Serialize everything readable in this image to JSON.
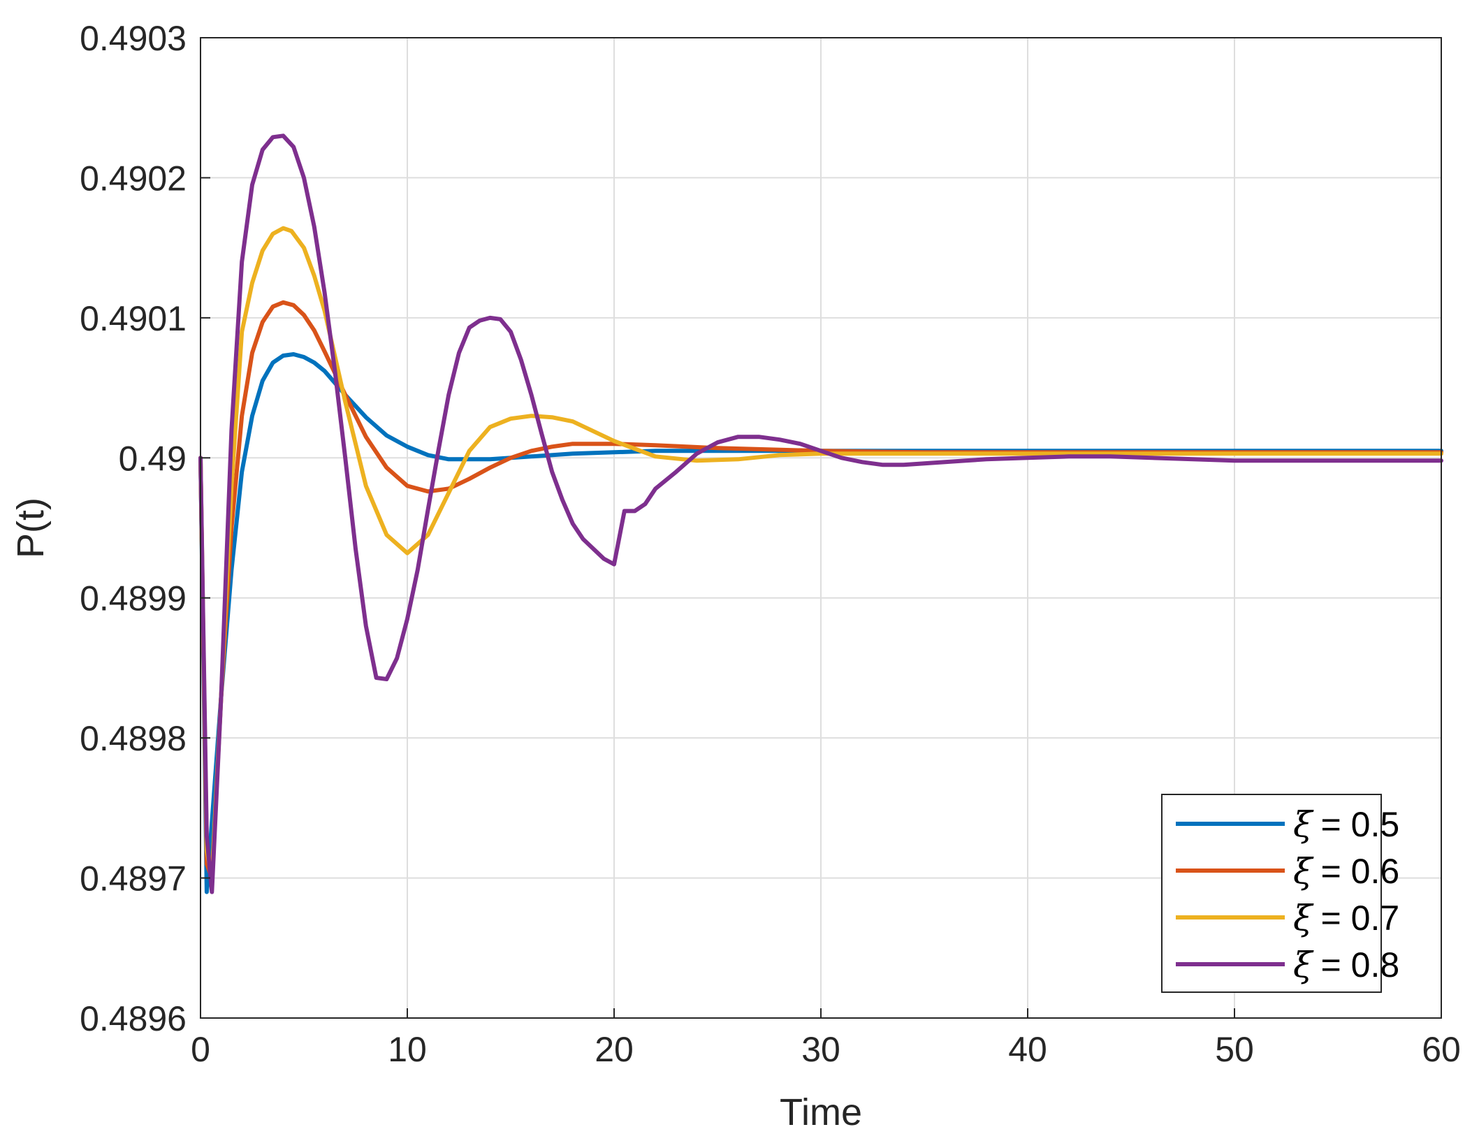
{
  "chart_data": {
    "type": "line",
    "title": "",
    "xlabel": "Time",
    "ylabel": "P(t)",
    "xlim": [
      0,
      60
    ],
    "ylim": [
      0.4896,
      0.4903
    ],
    "xticks": [
      0,
      10,
      20,
      30,
      40,
      50,
      60
    ],
    "xtick_labels": [
      "0",
      "10",
      "20",
      "30",
      "40",
      "50",
      "60"
    ],
    "yticks": [
      0.4896,
      0.4897,
      0.4898,
      0.4899,
      0.49,
      0.4901,
      0.4902,
      0.4903
    ],
    "ytick_labels": [
      "0.4896",
      "0.4897",
      "0.4898",
      "0.4899",
      "0.49",
      "0.4901",
      "0.4902",
      "0.4903"
    ],
    "grid": true,
    "legend_position": "bottom-right",
    "series": [
      {
        "name": "ξ = 0.5",
        "legend_symbol": "ξ",
        "legend_value": "= 0.5",
        "color": "#0072BD",
        "x": [
          0,
          0.3,
          0.6,
          1,
          1.5,
          2,
          2.5,
          3,
          3.5,
          4,
          4.5,
          5,
          5.5,
          6,
          7,
          8,
          9,
          10,
          11,
          12,
          13,
          14,
          15,
          16,
          18,
          20,
          22,
          25,
          30,
          35,
          40,
          45,
          50,
          55,
          60
        ],
        "y": [
          0.49,
          0.48969,
          0.48975,
          0.48983,
          0.48992,
          0.48999,
          0.49003,
          0.490055,
          0.490068,
          0.490073,
          0.490074,
          0.490072,
          0.490068,
          0.490062,
          0.490045,
          0.490029,
          0.490016,
          0.490008,
          0.490002,
          0.489999,
          0.489999,
          0.489999,
          0.49,
          0.490001,
          0.490003,
          0.490004,
          0.490005,
          0.490005,
          0.490005,
          0.490005,
          0.490005,
          0.490005,
          0.490005,
          0.490005,
          0.490005
        ]
      },
      {
        "name": "ξ = 0.6",
        "legend_symbol": "ξ",
        "legend_value": "= 0.6",
        "color": "#D95319",
        "x": [
          0,
          0.3,
          0.55,
          1,
          1.5,
          2,
          2.5,
          3,
          3.5,
          4,
          4.5,
          5,
          5.5,
          6,
          7,
          8,
          9,
          10,
          11,
          12,
          13,
          14,
          15,
          16,
          17,
          18,
          20,
          22,
          25,
          30,
          35,
          40,
          45,
          50,
          55,
          60
        ],
        "y": [
          0.49,
          0.48971,
          0.4897,
          0.48983,
          0.48995,
          0.49003,
          0.490075,
          0.490097,
          0.490108,
          0.490111,
          0.490109,
          0.490102,
          0.490091,
          0.490076,
          0.490045,
          0.490015,
          0.489993,
          0.48998,
          0.489976,
          0.489978,
          0.489985,
          0.489993,
          0.49,
          0.490005,
          0.490008,
          0.49001,
          0.49001,
          0.490009,
          0.490007,
          0.490005,
          0.490004,
          0.490004,
          0.490004,
          0.490004,
          0.490004,
          0.490004
        ]
      },
      {
        "name": "ξ = 0.7",
        "legend_symbol": "ξ",
        "legend_value": "= 0.7",
        "color": "#EDB120",
        "x": [
          0,
          0.3,
          0.55,
          1,
          1.5,
          2,
          2.5,
          3,
          3.5,
          4,
          4.4,
          5,
          5.5,
          6,
          7,
          8,
          9,
          10,
          11,
          12,
          13,
          14,
          15,
          16,
          17,
          18,
          19,
          20,
          22,
          24,
          26,
          28,
          30,
          35,
          40,
          45,
          50,
          55,
          60
        ],
        "y": [
          0.49,
          0.48972,
          0.4897,
          0.48983,
          0.48998,
          0.49009,
          0.490125,
          0.490148,
          0.49016,
          0.490164,
          0.490162,
          0.49015,
          0.49013,
          0.490105,
          0.49004,
          0.48998,
          0.489945,
          0.489932,
          0.489945,
          0.489975,
          0.490005,
          0.490022,
          0.490028,
          0.49003,
          0.490029,
          0.490026,
          0.490019,
          0.490012,
          0.490001,
          0.489998,
          0.489999,
          0.490002,
          0.490003,
          0.490003,
          0.490003,
          0.490003,
          0.490003,
          0.490003,
          0.490003
        ]
      },
      {
        "name": "ξ = 0.8",
        "legend_symbol": "ξ",
        "legend_value": "= 0.8",
        "color": "#7E2F8E",
        "x": [
          0,
          0.3,
          0.55,
          1,
          1.5,
          2,
          2.5,
          3,
          3.5,
          4,
          4.5,
          5,
          5.5,
          6,
          6.5,
          7,
          7.5,
          8,
          8.5,
          9,
          9.5,
          10,
          10.5,
          11,
          11.5,
          12,
          12.5,
          13,
          13.5,
          14,
          14.5,
          15,
          15.5,
          16,
          16.5,
          17,
          17.5,
          18,
          18.5,
          19,
          19.5,
          20,
          20.5,
          21,
          21.5,
          22,
          23,
          24,
          25,
          26,
          27,
          28,
          29,
          30,
          31,
          32,
          33,
          34,
          35,
          36,
          37,
          38,
          40,
          42,
          44,
          46,
          48,
          50,
          52,
          55,
          60
        ],
        "y": [
          0.49,
          0.48973,
          0.48969,
          0.48983,
          0.49002,
          0.49014,
          0.490195,
          0.49022,
          0.490229,
          0.49023,
          0.490222,
          0.4902,
          0.490165,
          0.490118,
          0.490062,
          0.49,
          0.489935,
          0.48988,
          0.489843,
          0.489842,
          0.489857,
          0.489885,
          0.48992,
          0.489963,
          0.490005,
          0.490045,
          0.490075,
          0.490093,
          0.490098,
          0.4901,
          0.490099,
          0.49009,
          0.49007,
          0.490045,
          0.490017,
          0.48999,
          0.48997,
          0.489953,
          0.489942,
          0.489935,
          0.489928,
          0.489924,
          0.489962,
          0.489962,
          0.489967,
          0.489978,
          0.48999,
          0.490003,
          0.490011,
          0.490015,
          0.490015,
          0.490013,
          0.49001,
          0.490005,
          0.49,
          0.489997,
          0.489995,
          0.489995,
          0.489996,
          0.489997,
          0.489998,
          0.489999,
          0.49,
          0.490001,
          0.490001,
          0.49,
          0.489999,
          0.489998,
          0.489998,
          0.489998,
          0.489998
        ]
      }
    ]
  }
}
